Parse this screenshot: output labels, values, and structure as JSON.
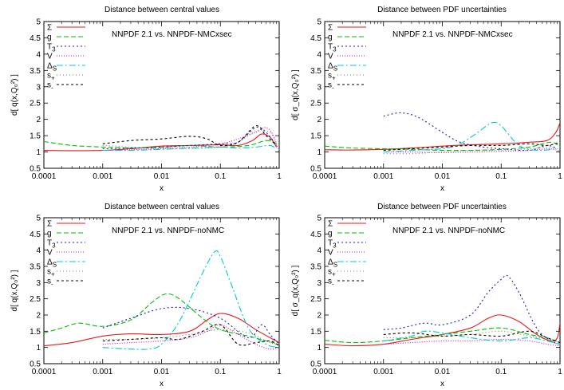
{
  "figure": {
    "axis_tick_labels_x": [
      "0.0001",
      "0.001",
      "0.01",
      "0.1",
      "1"
    ],
    "axis_tick_labels_y": [
      "0.5",
      "1",
      "1.5",
      "2",
      "2.5",
      "3",
      "3.5",
      "4",
      "4.5",
      "5"
    ],
    "colors": {
      "Sigma": "#e41a1c",
      "g": "#00c000",
      "T3": "#1a1acc",
      "V": "#d400d4",
      "DeltaS": "#00c8d8",
      "s_plus": "#808040",
      "s_minus": "#000000"
    }
  },
  "chart_data": [
    {
      "type": "line",
      "title": "Distance between central values",
      "annotation": "NNPDF 2.1 vs. NNPDF-NMCxsec",
      "xlabel": "x",
      "ylabel": "d[ q(x,Q₀²) ]",
      "xscale": "log",
      "xlim": [
        0.0001,
        1
      ],
      "ylim": [
        0.5,
        5
      ],
      "legend_position": "top-left",
      "series": [
        {
          "name": "Σ",
          "color": "#e41a1c",
          "dash": "solid",
          "x": [
            0.0001,
            0.0003,
            0.001,
            0.003,
            0.01,
            0.03,
            0.1,
            0.2,
            0.35,
            0.5,
            0.7,
            0.9
          ],
          "y": [
            1.05,
            1.04,
            1.05,
            1.1,
            1.18,
            1.2,
            1.22,
            1.2,
            1.35,
            1.55,
            1.45,
            1.15
          ]
        },
        {
          "name": "g",
          "color": "#00c000",
          "dash": "6,3",
          "x": [
            0.0001,
            0.0003,
            0.001,
            0.003,
            0.01,
            0.03,
            0.1,
            0.3,
            0.6,
            0.9
          ],
          "y": [
            1.32,
            1.2,
            1.15,
            1.12,
            1.14,
            1.2,
            1.15,
            1.2,
            1.35,
            1.25
          ]
        },
        {
          "name": "T₃",
          "color": "#1a1acc",
          "dash": "2,3",
          "x": [
            0.001,
            0.003,
            0.01,
            0.03,
            0.1,
            0.2,
            0.4,
            0.6,
            0.9
          ],
          "y": [
            1.1,
            1.12,
            1.15,
            1.2,
            1.25,
            1.3,
            1.75,
            1.6,
            1.2
          ]
        },
        {
          "name": "V",
          "color": "#d400d4",
          "dash": "1,2",
          "x": [
            0.001,
            0.003,
            0.01,
            0.03,
            0.1,
            0.2,
            0.4,
            0.6,
            0.8,
            0.95
          ],
          "y": [
            1.05,
            1.07,
            1.1,
            1.15,
            1.25,
            1.4,
            1.6,
            1.75,
            1.5,
            1.1
          ]
        },
        {
          "name": "Δ_S",
          "color": "#00c8d8",
          "dash": "8,3,2,3",
          "x": [
            0.001,
            0.003,
            0.01,
            0.03,
            0.1,
            0.2,
            0.4,
            0.7,
            0.9
          ],
          "y": [
            1.05,
            1.05,
            1.08,
            1.12,
            1.15,
            1.12,
            1.15,
            1.2,
            1.1
          ]
        },
        {
          "name": "s₊",
          "color": "#808040",
          "dash": "1,3",
          "x": [
            0.001,
            0.003,
            0.01,
            0.03,
            0.1,
            0.2,
            0.4,
            0.7,
            0.9
          ],
          "y": [
            1.2,
            1.15,
            1.1,
            1.1,
            1.15,
            1.3,
            1.65,
            1.6,
            1.2
          ]
        },
        {
          "name": "s₋",
          "color": "#000000",
          "dash": "3,3",
          "x": [
            0.001,
            0.003,
            0.01,
            0.03,
            0.06,
            0.1,
            0.2,
            0.4,
            0.6,
            0.9
          ],
          "y": [
            1.25,
            1.35,
            1.4,
            1.48,
            1.4,
            1.2,
            1.3,
            1.8,
            1.5,
            1.2
          ]
        }
      ]
    },
    {
      "type": "line",
      "title": "Distance between PDF uncertainties",
      "annotation": "NNPDF 2.1 vs. NNPDF-NMCxsec",
      "xlabel": "x",
      "ylabel": "d[ σ_q(x,Q₀²) ]",
      "xscale": "log",
      "xlim": [
        0.0001,
        1
      ],
      "ylim": [
        0.5,
        5
      ],
      "legend_position": "top-left",
      "series": [
        {
          "name": "Σ",
          "color": "#e41a1c",
          "dash": "solid",
          "x": [
            0.0001,
            0.0003,
            0.001,
            0.003,
            0.01,
            0.03,
            0.1,
            0.3,
            0.6,
            0.85,
            1.0
          ],
          "y": [
            1.07,
            1.06,
            1.08,
            1.12,
            1.18,
            1.22,
            1.25,
            1.3,
            1.35,
            1.6,
            1.9
          ]
        },
        {
          "name": "g",
          "color": "#00c000",
          "dash": "6,3",
          "x": [
            0.0001,
            0.0003,
            0.001,
            0.003,
            0.01,
            0.03,
            0.1,
            0.3,
            0.7,
            1.0
          ],
          "y": [
            1.18,
            1.12,
            1.1,
            1.08,
            1.05,
            1.05,
            1.08,
            1.15,
            1.3,
            1.15
          ]
        },
        {
          "name": "T₃",
          "color": "#1a1acc",
          "dash": "2,3",
          "x": [
            0.001,
            0.002,
            0.004,
            0.01,
            0.02,
            0.05,
            0.1,
            0.3,
            0.6,
            0.9
          ],
          "y": [
            2.1,
            2.2,
            2.05,
            1.6,
            1.3,
            1.15,
            1.1,
            1.05,
            1.2,
            1.1
          ]
        },
        {
          "name": "V",
          "color": "#d400d4",
          "dash": "1,2",
          "x": [
            0.001,
            0.003,
            0.01,
            0.03,
            0.1,
            0.3,
            0.7,
            1.0
          ],
          "y": [
            1.0,
            1.0,
            0.98,
            1.0,
            1.02,
            1.05,
            1.1,
            1.0
          ]
        },
        {
          "name": "Δ_S",
          "color": "#00c8d8",
          "dash": "8,3,2,3",
          "x": [
            0.001,
            0.003,
            0.01,
            0.02,
            0.04,
            0.07,
            0.1,
            0.2,
            0.4,
            0.9
          ],
          "y": [
            1.0,
            1.05,
            1.1,
            1.25,
            1.6,
            1.9,
            1.8,
            1.2,
            1.05,
            1.1
          ]
        },
        {
          "name": "s₊",
          "color": "#808040",
          "dash": "1,3",
          "x": [
            0.001,
            0.003,
            0.01,
            0.03,
            0.1,
            0.3,
            0.7,
            1.0
          ],
          "y": [
            0.95,
            0.95,
            1.0,
            1.05,
            1.05,
            1.1,
            1.15,
            1.0
          ]
        },
        {
          "name": "s₋",
          "color": "#000000",
          "dash": "3,3",
          "x": [
            0.001,
            0.003,
            0.01,
            0.03,
            0.1,
            0.3,
            0.6,
            1.0
          ],
          "y": [
            1.05,
            1.1,
            1.15,
            1.2,
            1.2,
            1.25,
            1.2,
            1.3
          ]
        }
      ]
    },
    {
      "type": "line",
      "title": "Distance between central values",
      "annotation": "NNPDF 2.1 vs. NNPDF-noNMC",
      "xlabel": "x",
      "ylabel": "d[ q(x,Q₀²) ]",
      "xscale": "log",
      "xlim": [
        0.0001,
        1
      ],
      "ylim": [
        0.5,
        5
      ],
      "legend_position": "top-left",
      "series": [
        {
          "name": "Σ",
          "color": "#e41a1c",
          "dash": "solid",
          "x": [
            0.0001,
            0.0003,
            0.001,
            0.003,
            0.01,
            0.03,
            0.06,
            0.1,
            0.2,
            0.4,
            0.7,
            1.0
          ],
          "y": [
            1.05,
            1.15,
            1.35,
            1.42,
            1.4,
            1.5,
            1.85,
            2.05,
            1.9,
            1.55,
            1.3,
            1.15
          ]
        },
        {
          "name": "g",
          "color": "#00c000",
          "dash": "6,3",
          "x": [
            0.0001,
            0.0002,
            0.0004,
            0.001,
            0.003,
            0.007,
            0.012,
            0.02,
            0.05,
            0.1,
            0.3,
            0.6,
            1.0
          ],
          "y": [
            1.45,
            1.6,
            1.75,
            1.65,
            1.85,
            2.4,
            2.65,
            2.5,
            1.9,
            1.55,
            1.35,
            1.2,
            1.1
          ]
        },
        {
          "name": "T₃",
          "color": "#1a1acc",
          "dash": "2,3",
          "x": [
            0.001,
            0.003,
            0.01,
            0.03,
            0.1,
            0.3,
            0.5,
            0.7,
            1.0
          ],
          "y": [
            1.6,
            1.9,
            2.2,
            2.2,
            1.9,
            1.3,
            1.7,
            1.4,
            1.1
          ]
        },
        {
          "name": "V",
          "color": "#d400d4",
          "dash": "1,2",
          "x": [
            0.001,
            0.003,
            0.01,
            0.03,
            0.06,
            0.1,
            0.2,
            0.4,
            0.7,
            1.0
          ],
          "y": [
            1.1,
            1.15,
            1.2,
            1.3,
            1.5,
            1.7,
            1.4,
            1.1,
            0.95,
            1.0
          ]
        },
        {
          "name": "Δ_S",
          "color": "#00c8d8",
          "dash": "8,3,2,3",
          "x": [
            0.001,
            0.003,
            0.006,
            0.01,
            0.02,
            0.05,
            0.08,
            0.1,
            0.15,
            0.3,
            0.6,
            1.0
          ],
          "y": [
            1.0,
            0.95,
            0.95,
            1.1,
            1.8,
            3.3,
            3.95,
            3.8,
            3.0,
            1.6,
            1.1,
            1.0
          ]
        },
        {
          "name": "s₊",
          "color": "#808040",
          "dash": "1,3",
          "x": [
            0.001,
            0.003,
            0.01,
            0.03,
            0.1,
            0.3,
            0.6,
            1.0
          ],
          "y": [
            1.25,
            1.25,
            1.3,
            1.4,
            1.55,
            1.45,
            1.2,
            1.05
          ]
        },
        {
          "name": "s₋",
          "color": "#000000",
          "dash": "3,3",
          "x": [
            0.001,
            0.003,
            0.01,
            0.02,
            0.05,
            0.1,
            0.2,
            0.4,
            0.7,
            1.0
          ],
          "y": [
            1.2,
            1.25,
            1.3,
            1.25,
            1.5,
            1.7,
            1.1,
            1.15,
            1.2,
            1.05
          ]
        }
      ]
    },
    {
      "type": "line",
      "title": "Distance between PDF uncertainties",
      "annotation": "NNPDF 2.1 vs. NNPDF-noNMC",
      "xlabel": "x",
      "ylabel": "d[ σ_q(x,Q₀²) ]",
      "xscale": "log",
      "xlim": [
        0.0001,
        1
      ],
      "ylim": [
        0.5,
        5
      ],
      "legend_position": "top-left",
      "series": [
        {
          "name": "Σ",
          "color": "#e41a1c",
          "dash": "solid",
          "x": [
            0.0001,
            0.0003,
            0.001,
            0.003,
            0.01,
            0.03,
            0.06,
            0.1,
            0.2,
            0.4,
            0.7,
            0.9,
            1.0
          ],
          "y": [
            1.1,
            1.05,
            1.1,
            1.25,
            1.4,
            1.6,
            1.9,
            2.0,
            1.8,
            1.4,
            1.2,
            1.3,
            1.75
          ]
        },
        {
          "name": "g",
          "color": "#00c000",
          "dash": "6,3",
          "x": [
            0.0001,
            0.0003,
            0.001,
            0.003,
            0.01,
            0.03,
            0.1,
            0.3,
            0.6,
            1.0
          ],
          "y": [
            1.22,
            1.15,
            1.2,
            1.3,
            1.4,
            1.5,
            1.6,
            1.4,
            1.3,
            1.15
          ]
        },
        {
          "name": "T₃",
          "color": "#1a1acc",
          "dash": "2,3",
          "x": [
            0.001,
            0.002,
            0.005,
            0.01,
            0.03,
            0.06,
            0.1,
            0.13,
            0.2,
            0.4,
            0.7,
            1.0
          ],
          "y": [
            1.55,
            1.6,
            1.75,
            1.7,
            2.0,
            2.7,
            3.1,
            3.2,
            2.7,
            1.6,
            1.2,
            1.1
          ]
        },
        {
          "name": "V",
          "color": "#d400d4",
          "dash": "1,2",
          "x": [
            0.001,
            0.003,
            0.01,
            0.03,
            0.1,
            0.3,
            0.6,
            1.0
          ],
          "y": [
            1.1,
            1.15,
            1.2,
            1.2,
            1.25,
            1.2,
            1.1,
            1.05
          ]
        },
        {
          "name": "Δ_S",
          "color": "#00c8d8",
          "dash": "8,3,2,3",
          "x": [
            0.001,
            0.003,
            0.005,
            0.01,
            0.03,
            0.1,
            0.3,
            0.6,
            1.0
          ],
          "y": [
            1.2,
            1.35,
            1.5,
            1.45,
            1.3,
            1.2,
            1.3,
            1.2,
            1.1
          ]
        },
        {
          "name": "s₊",
          "color": "#808040",
          "dash": "1,3",
          "x": [
            0.001,
            0.003,
            0.01,
            0.03,
            0.1,
            0.3,
            0.6,
            1.0
          ],
          "y": [
            1.3,
            1.3,
            1.35,
            1.4,
            1.5,
            1.35,
            1.25,
            1.1
          ]
        },
        {
          "name": "s₋",
          "color": "#000000",
          "dash": "3,3",
          "x": [
            0.001,
            0.003,
            0.01,
            0.03,
            0.1,
            0.3,
            0.6,
            1.0
          ],
          "y": [
            1.4,
            1.45,
            1.35,
            1.4,
            1.35,
            1.5,
            1.3,
            1.15
          ]
        }
      ]
    }
  ]
}
